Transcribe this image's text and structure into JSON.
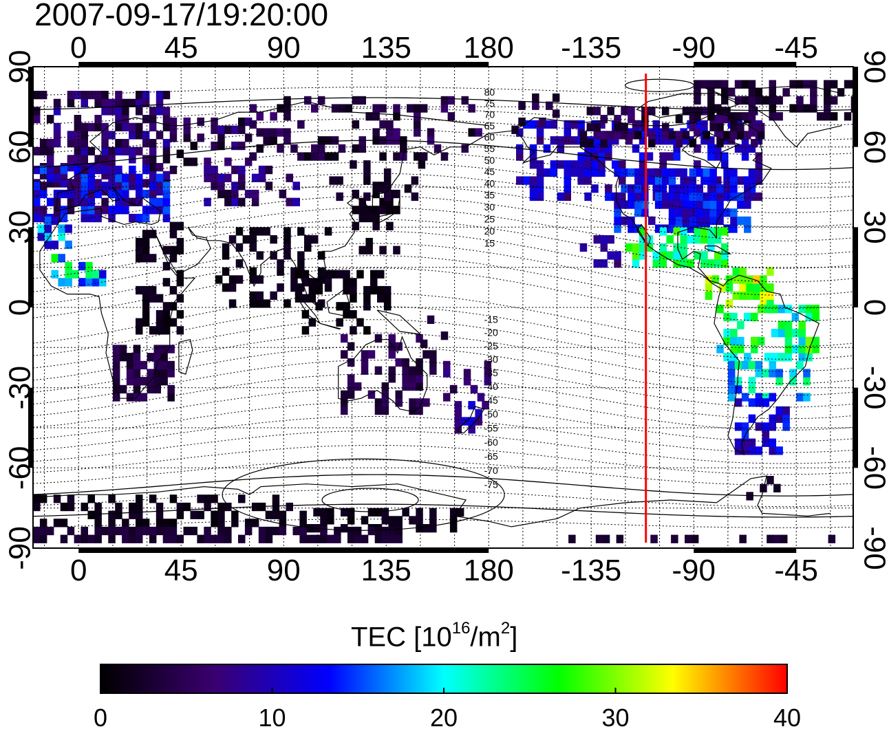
{
  "title": "2007-09-17/19:20:00",
  "map": {
    "lon_ticks": [
      0,
      45,
      90,
      135,
      180,
      -135,
      -90,
      -45
    ],
    "lat_ticks": [
      90,
      60,
      30,
      0,
      -30,
      -60,
      -90
    ],
    "dip_labels_north": [
      80,
      75,
      70,
      65,
      60,
      55,
      50,
      45,
      40,
      35,
      30,
      25,
      20,
      15
    ],
    "dip_labels_south": [
      -15,
      -20,
      -25,
      -30,
      -35,
      -40,
      -45,
      -50,
      -55,
      -60,
      -65,
      -70,
      -75
    ],
    "terminator_lon": -111,
    "terminator_color": "#ff0000",
    "grid": true
  },
  "colorbar": {
    "label_prefix": "TEC  [10",
    "label_exp1": "16",
    "label_mid": "/m",
    "label_exp2": "2",
    "label_suffix": "]",
    "min": 0,
    "max": 40,
    "ticks": [
      0,
      10,
      20,
      30,
      40
    ],
    "stops": [
      "#000000",
      "#3a0070",
      "#0000ff",
      "#00ffff",
      "#00ff00",
      "#ffff00",
      "#ff0000"
    ]
  }
}
